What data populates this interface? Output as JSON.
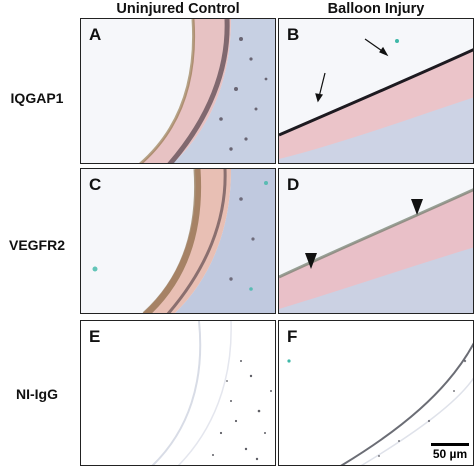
{
  "columns": {
    "left": "Uninjured Control",
    "right": "Balloon Injury"
  },
  "rows": {
    "r1": "IQGAP1",
    "r2": "VEGFR2",
    "r3": "NI-IgG"
  },
  "panels": {
    "a": "A",
    "b": "B",
    "c": "C",
    "d": "D",
    "e": "E",
    "f": "F"
  },
  "scale_bar": "50 µm",
  "colors": {
    "tissue_pink": "#e6bcc0",
    "adventitia_blue": "#b9c3dc",
    "stain_dark": "#2c1f2a",
    "stain_brown": "#7a5a30",
    "teal_speck": "#3fb8a8"
  }
}
